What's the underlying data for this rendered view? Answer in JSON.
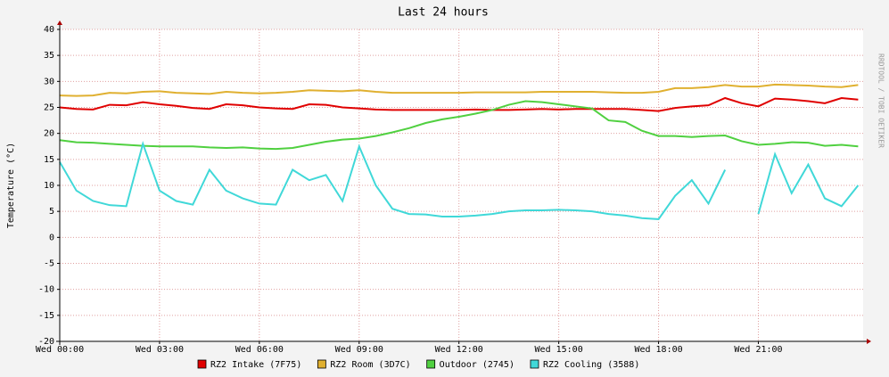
{
  "chart_data": {
    "type": "line",
    "title": "Last 24 hours",
    "y_label": "Temperature (°C)",
    "side_label": "RRDTOOL / TOBI OETIKER",
    "x": [
      0,
      0.5,
      1,
      1.5,
      2,
      2.5,
      3,
      3.5,
      4,
      4.5,
      5,
      5.5,
      6,
      6.5,
      7,
      7.5,
      8,
      8.5,
      9,
      9.5,
      10,
      10.5,
      11,
      11.5,
      12,
      12.5,
      13,
      13.5,
      14,
      14.5,
      15,
      15.5,
      16,
      16.5,
      17,
      17.5,
      18,
      18.5,
      19,
      19.5,
      20,
      20.5,
      21,
      21.5,
      22,
      22.5,
      23,
      23.5,
      24
    ],
    "xlim": [
      0,
      24.15
    ],
    "xticks": [
      {
        "value": 0,
        "label": "Wed 00:00"
      },
      {
        "value": 3,
        "label": "Wed 03:00"
      },
      {
        "value": 6,
        "label": "Wed 06:00"
      },
      {
        "value": 9,
        "label": "Wed 09:00"
      },
      {
        "value": 12,
        "label": "Wed 12:00"
      },
      {
        "value": 15,
        "label": "Wed 15:00"
      },
      {
        "value": 18,
        "label": "Wed 18:00"
      },
      {
        "value": 21,
        "label": "Wed 21:00"
      }
    ],
    "ylim": [
      -20,
      40
    ],
    "yticks": [
      -20,
      -15,
      -10,
      -5,
      0,
      5,
      10,
      15,
      20,
      25,
      30,
      35,
      40
    ],
    "grid": true,
    "series": [
      {
        "name": "RZ2 Intake (7F75)",
        "color": "#e00000",
        "values": [
          25,
          24.7,
          24.6,
          25.5,
          25.4,
          26,
          25.6,
          25.3,
          24.9,
          24.7,
          25.6,
          25.4,
          25,
          24.8,
          24.7,
          25.6,
          25.5,
          25,
          24.8,
          24.6,
          24.5,
          24.5,
          24.5,
          24.5,
          24.5,
          24.6,
          24.5,
          24.5,
          24.6,
          24.7,
          24.6,
          24.7,
          24.7,
          24.7,
          24.7,
          24.5,
          24.3,
          24.9,
          25.2,
          25.4,
          26.8,
          25.8,
          25.2,
          26.7,
          26.5,
          26.2,
          25.8,
          26.8,
          26.5
        ]
      },
      {
        "name": "RZ2 Room (3D7C)",
        "color": "#e0b030",
        "values": [
          27.3,
          27.2,
          27.3,
          27.8,
          27.7,
          28,
          28.1,
          27.8,
          27.7,
          27.6,
          28,
          27.8,
          27.7,
          27.8,
          28,
          28.3,
          28.2,
          28.1,
          28.3,
          28,
          27.8,
          27.8,
          27.8,
          27.8,
          27.8,
          27.9,
          27.9,
          27.9,
          27.9,
          28,
          28,
          28,
          28,
          27.9,
          27.8,
          27.8,
          28,
          28.7,
          28.7,
          28.9,
          29.3,
          29,
          29,
          29.4,
          29.3,
          29.2,
          29,
          28.9,
          29.3
        ]
      },
      {
        "name": "Outdoor (2745)",
        "color": "#50d040",
        "values": [
          18.7,
          18.3,
          18.2,
          18,
          17.8,
          17.6,
          17.5,
          17.5,
          17.5,
          17.3,
          17.2,
          17.3,
          17.1,
          17,
          17.2,
          17.8,
          18.4,
          18.8,
          19,
          19.5,
          20.2,
          21,
          22,
          22.7,
          23.2,
          23.8,
          24.5,
          25.5,
          26.2,
          26,
          25.6,
          25.2,
          24.8,
          22.5,
          22.2,
          20.5,
          19.5,
          19.5,
          19.3,
          19.5,
          19.6,
          18.5,
          17.8,
          18,
          18.3,
          18.2,
          17.6,
          17.8,
          17.5
        ]
      },
      {
        "name": "RZ2 Cooling (3588)",
        "color": "#40d8d8",
        "values": [
          14.5,
          9,
          7,
          6.2,
          6,
          18,
          9,
          7,
          6.3,
          13,
          9,
          7.5,
          6.5,
          6.3,
          13,
          11,
          12,
          7,
          17.5,
          10,
          5.5,
          4.5,
          4.4,
          4,
          4,
          4.2,
          4.5,
          5,
          5.2,
          5.2,
          5.3,
          5.2,
          5,
          4.5,
          4.2,
          3.7,
          3.5,
          8,
          11,
          6.5,
          13,
          null,
          4.5,
          16,
          8.5,
          14,
          7.5,
          6,
          10
        ]
      }
    ]
  }
}
